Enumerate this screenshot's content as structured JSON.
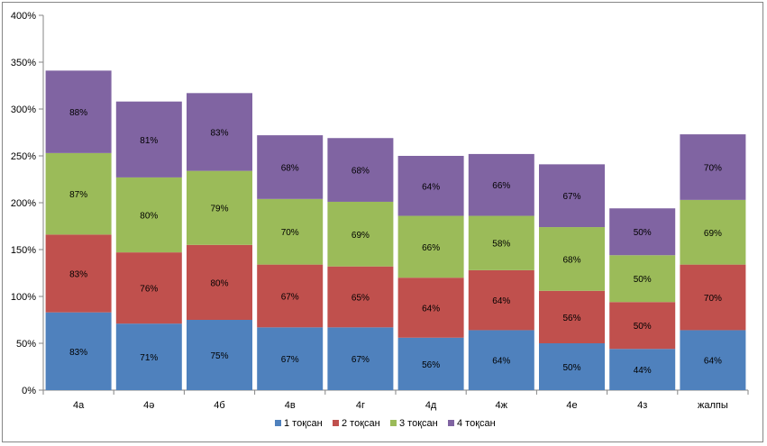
{
  "chart_data": {
    "type": "bar",
    "stacked": true,
    "title": "",
    "xlabel": "",
    "ylabel": "",
    "categories": [
      "4а",
      "4ә",
      "4б",
      "4в",
      "4г",
      "4д",
      "4ж",
      "4е",
      "4з",
      "жалпы"
    ],
    "ylim": [
      0,
      400
    ],
    "yticks": [
      0,
      50,
      100,
      150,
      200,
      250,
      300,
      350,
      400
    ],
    "ytick_labels": [
      "0%",
      "50%",
      "100%",
      "150%",
      "200%",
      "250%",
      "300%",
      "350%",
      "400%"
    ],
    "grid": false,
    "legend_position": "bottom",
    "series": [
      {
        "name": "1 тоқсан",
        "color": "#4f81bd",
        "values": [
          83,
          71,
          75,
          67,
          67,
          56,
          64,
          50,
          44,
          64
        ],
        "labels": [
          "83%",
          "71%",
          "75%",
          "67%",
          "67%",
          "56%",
          "64%",
          "50%",
          "44%",
          "64%"
        ]
      },
      {
        "name": "2 тоқсан",
        "color": "#c0504d",
        "values": [
          83,
          76,
          80,
          67,
          65,
          64,
          64,
          56,
          50,
          70
        ],
        "labels": [
          "83%",
          "76%",
          "80%",
          "67%",
          "65%",
          "64%",
          "64%",
          "56%",
          "50%",
          "70%"
        ]
      },
      {
        "name": "3 тоқсан",
        "color": "#9bbb59",
        "values": [
          87,
          80,
          79,
          70,
          69,
          66,
          58,
          68,
          50,
          69
        ],
        "labels": [
          "87%",
          "80%",
          "79%",
          "70%",
          "69%",
          "66%",
          "58%",
          "68%",
          "50%",
          "69%"
        ]
      },
      {
        "name": "4 тоқсан",
        "color": "#8064a2",
        "values": [
          88,
          81,
          83,
          68,
          68,
          64,
          66,
          67,
          50,
          70
        ],
        "labels": [
          "88%",
          "81%",
          "83%",
          "68%",
          "68%",
          "64%",
          "66%",
          "67%",
          "50%",
          "70%"
        ]
      }
    ]
  }
}
